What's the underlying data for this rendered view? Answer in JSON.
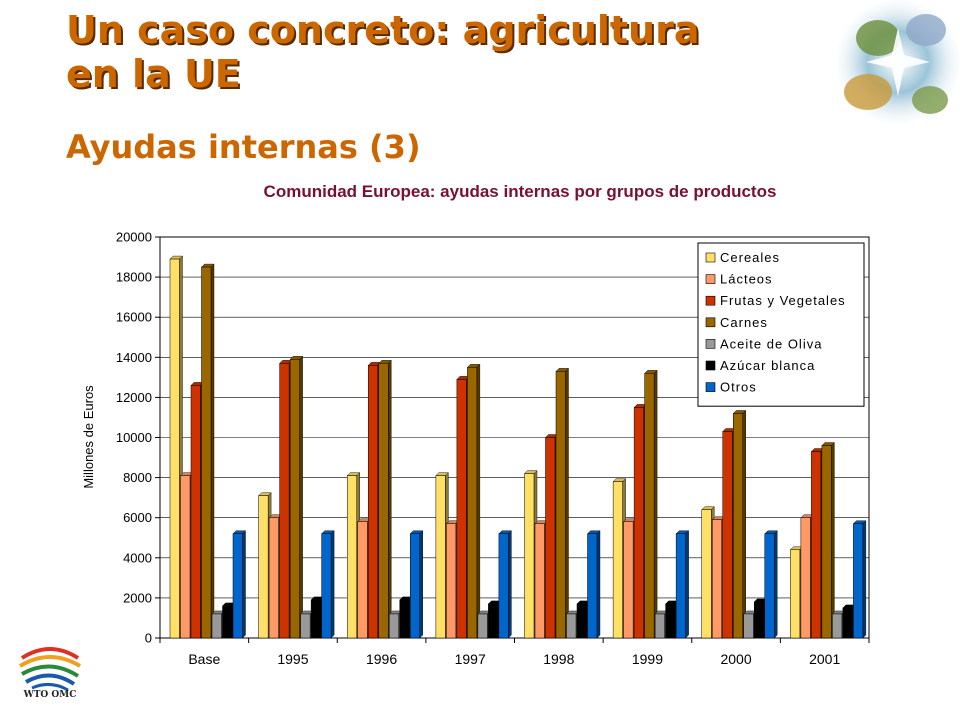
{
  "slide": {
    "title_line1": "Un caso concreto: agricultura",
    "title_line2": "en la UE",
    "subtitle": "Ayudas internas (3)",
    "logo_text": "WTO OMC",
    "title_color": "#cc6600"
  },
  "chart_data": {
    "type": "bar",
    "title": "Comunidad Europea: ayudas internas por grupos de productos",
    "xlabel": "",
    "ylabel": "Millones de Euros",
    "ylim": [
      0,
      20000
    ],
    "yticks": [
      "0",
      "2000",
      "4000",
      "6000",
      "8000",
      "10000",
      "12000",
      "14000",
      "16000",
      "18000",
      "20000"
    ],
    "grid": true,
    "legend_position": "top-right",
    "categories": [
      "Base",
      "1995",
      "1996",
      "1997",
      "1998",
      "1999",
      "2000",
      "2001"
    ],
    "series": [
      {
        "name": "Cereales",
        "color": "#ffe066",
        "values": [
          18900,
          7100,
          8100,
          8100,
          8200,
          7800,
          6400,
          4400
        ]
      },
      {
        "name": "Lácteos",
        "color": "#ff9966",
        "values": [
          8100,
          6000,
          5800,
          5700,
          5700,
          5800,
          5900,
          6000
        ]
      },
      {
        "name": "Frutas y Vegetales",
        "color": "#cc3300",
        "values": [
          12600,
          13700,
          13600,
          12900,
          10000,
          11500,
          10300,
          9300
        ]
      },
      {
        "name": "Carnes",
        "color": "#996600",
        "values": [
          18500,
          13900,
          13700,
          13500,
          13300,
          13200,
          11200,
          9600
        ]
      },
      {
        "name": "Aceite de Oliva",
        "color": "#999999",
        "values": [
          1200,
          1200,
          1200,
          1200,
          1200,
          1200,
          1200,
          1200
        ]
      },
      {
        "name": "Azúcar blanca",
        "color": "#000000",
        "values": [
          1600,
          1900,
          1900,
          1700,
          1700,
          1700,
          1800,
          1500
        ]
      },
      {
        "name": "Otros",
        "color": "#0066cc",
        "values": [
          5200,
          5200,
          5200,
          5200,
          5200,
          5200,
          5200,
          5700
        ]
      }
    ]
  }
}
